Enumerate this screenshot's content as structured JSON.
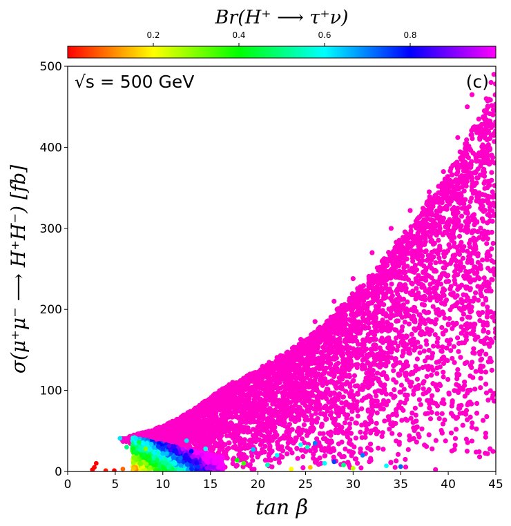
{
  "chart_data": {
    "type": "scatter",
    "title": "",
    "xlabel": "tan β",
    "ylabel": "σ(μ⁺μ⁻ ⟶ H⁺H⁻) [fb]",
    "xlim": [
      0,
      45
    ],
    "ylim": [
      0,
      500
    ],
    "xticks": [
      "0",
      "5",
      "10",
      "15",
      "20",
      "25",
      "30",
      "35",
      "40",
      "45"
    ],
    "yticks": [
      "0",
      "100",
      "200",
      "300",
      "400",
      "500"
    ],
    "grid": false,
    "annotations": {
      "energy": "√s = 500 GeV",
      "panel": "(c)"
    },
    "colorbar": {
      "label": "Br(H⁺ ⟶ τ⁺ν)",
      "colormap": "gist_rainbow_r",
      "range": [
        0,
        1
      ],
      "ticks": [
        "0.2",
        "0.4",
        "0.6",
        "0.8"
      ],
      "location": "top",
      "colors": [
        "#ff0000",
        "#ffff00",
        "#00ff00",
        "#00ffff",
        "#0000ff",
        "#ff00ff"
      ]
    },
    "dominant_color": "#ff00c8",
    "envelope_upper": [
      [
        5.5,
        40
      ],
      [
        7,
        45
      ],
      [
        9,
        52
      ],
      [
        11,
        62
      ],
      [
        13,
        75
      ],
      [
        15,
        92
      ],
      [
        17,
        108
      ],
      [
        20,
        125
      ],
      [
        23,
        145
      ],
      [
        25,
        160
      ],
      [
        27,
        180
      ],
      [
        29,
        205
      ],
      [
        31,
        228
      ],
      [
        33,
        255
      ],
      [
        35,
        285
      ],
      [
        37,
        315
      ],
      [
        39,
        350
      ],
      [
        41,
        385
      ],
      [
        43,
        425
      ],
      [
        45,
        470
      ]
    ],
    "outliers": [
      [
        42.5,
        465
      ],
      [
        44.8,
        490
      ],
      [
        44.5,
        480
      ],
      [
        43.8,
        445
      ],
      [
        42,
        450
      ],
      [
        41,
        412
      ],
      [
        44,
        460
      ],
      [
        39.5,
        370
      ],
      [
        38,
        345
      ],
      [
        36,
        322
      ],
      [
        34,
        300
      ],
      [
        32,
        270
      ],
      [
        30,
        238
      ],
      [
        28,
        210
      ],
      [
        26,
        185
      ],
      [
        24.5,
        163
      ],
      [
        44.7,
        440
      ],
      [
        43.5,
        428
      ]
    ],
    "low_points": [
      {
        "x": 2.8,
        "y": 5,
        "br": 0.0
      },
      {
        "x": 3.0,
        "y": 10,
        "br": 0.0
      },
      {
        "x": 2.6,
        "y": 2,
        "br": 0.0
      },
      {
        "x": 4.0,
        "y": 1,
        "br": 0.02
      },
      {
        "x": 4.9,
        "y": 1,
        "br": 0.0
      },
      {
        "x": 5.8,
        "y": 3,
        "br": 0.08
      },
      {
        "x": 5.5,
        "y": 41,
        "br": 0.62
      },
      {
        "x": 6.2,
        "y": 30,
        "br": 0.5
      },
      {
        "x": 7.5,
        "y": 36,
        "br": 0.45
      },
      {
        "x": 8.2,
        "y": 28,
        "br": 0.3
      },
      {
        "x": 12.5,
        "y": 38,
        "br": 0.62
      },
      {
        "x": 13,
        "y": 25,
        "br": 0.8
      },
      {
        "x": 14.5,
        "y": 28,
        "br": 0.6
      },
      {
        "x": 17.8,
        "y": 14,
        "br": 0.4
      },
      {
        "x": 18.5,
        "y": 10,
        "br": 0.35
      },
      {
        "x": 19.5,
        "y": 27,
        "br": 0.65
      },
      {
        "x": 21,
        "y": 8,
        "br": 0.55
      },
      {
        "x": 22,
        "y": 20,
        "br": 0.6
      },
      {
        "x": 23.5,
        "y": 3,
        "br": 0.2
      },
      {
        "x": 24.5,
        "y": 33,
        "br": 0.6
      },
      {
        "x": 25.5,
        "y": 5,
        "br": 0.15
      },
      {
        "x": 25.2,
        "y": 30,
        "br": 0.55
      },
      {
        "x": 26,
        "y": 35,
        "br": 0.7
      },
      {
        "x": 27,
        "y": 10,
        "br": 0.6
      },
      {
        "x": 28,
        "y": 12,
        "br": 0.75
      },
      {
        "x": 29,
        "y": 8,
        "br": 0.5
      },
      {
        "x": 30,
        "y": 4,
        "br": 0.25
      },
      {
        "x": 31,
        "y": 20,
        "br": 0.7
      },
      {
        "x": 33.5,
        "y": 7,
        "br": 0.6
      },
      {
        "x": 35,
        "y": 6,
        "br": 0.72
      }
    ]
  }
}
